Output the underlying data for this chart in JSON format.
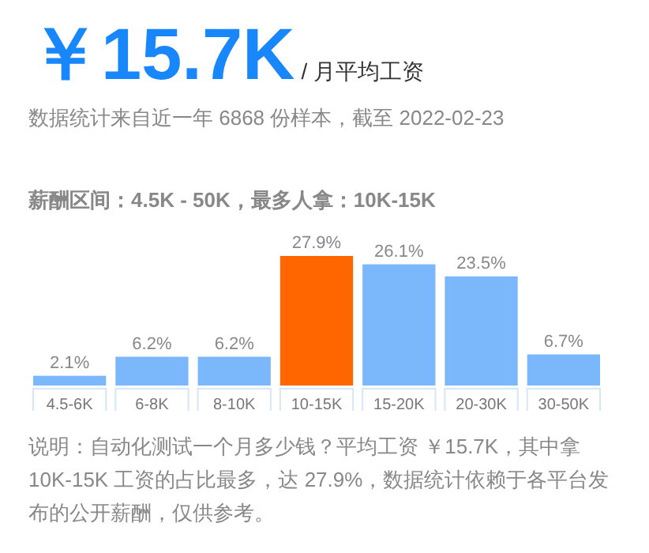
{
  "chart_data": {
    "type": "bar",
    "title": "￥15.7K",
    "subtitle": "/ 月平均工资",
    "annotations": [
      "数据统计来自近一年 6868 份样本，截至 2022-02-23",
      "薪酬区间：4.5K - 50K，最多人拿：10K-15K",
      "说明：自动化测试一个月多少钱？平均工资 ￥15.7K，其中拿 10K-15K 工资的占比最多，达 27.9%，数据统计依赖于各平台发布的公开薪酬，仅供参考。"
    ],
    "categories": [
      "4.5-6K",
      "6-8K",
      "8-10K",
      "10-15K",
      "15-20K",
      "20-30K",
      "30-50K"
    ],
    "values": [
      2.1,
      6.2,
      6.2,
      27.9,
      26.1,
      23.5,
      6.7
    ],
    "colors": [
      "#7ab8fb",
      "#7ab8fb",
      "#7ab8fb",
      "#ff6600",
      "#7ab8fb",
      "#7ab8fb",
      "#7ab8fb"
    ],
    "value_labels": [
      "2.1%",
      "6.2%",
      "6.2%",
      "27.9%",
      "26.1%",
      "23.5%",
      "6.7%"
    ]
  }
}
